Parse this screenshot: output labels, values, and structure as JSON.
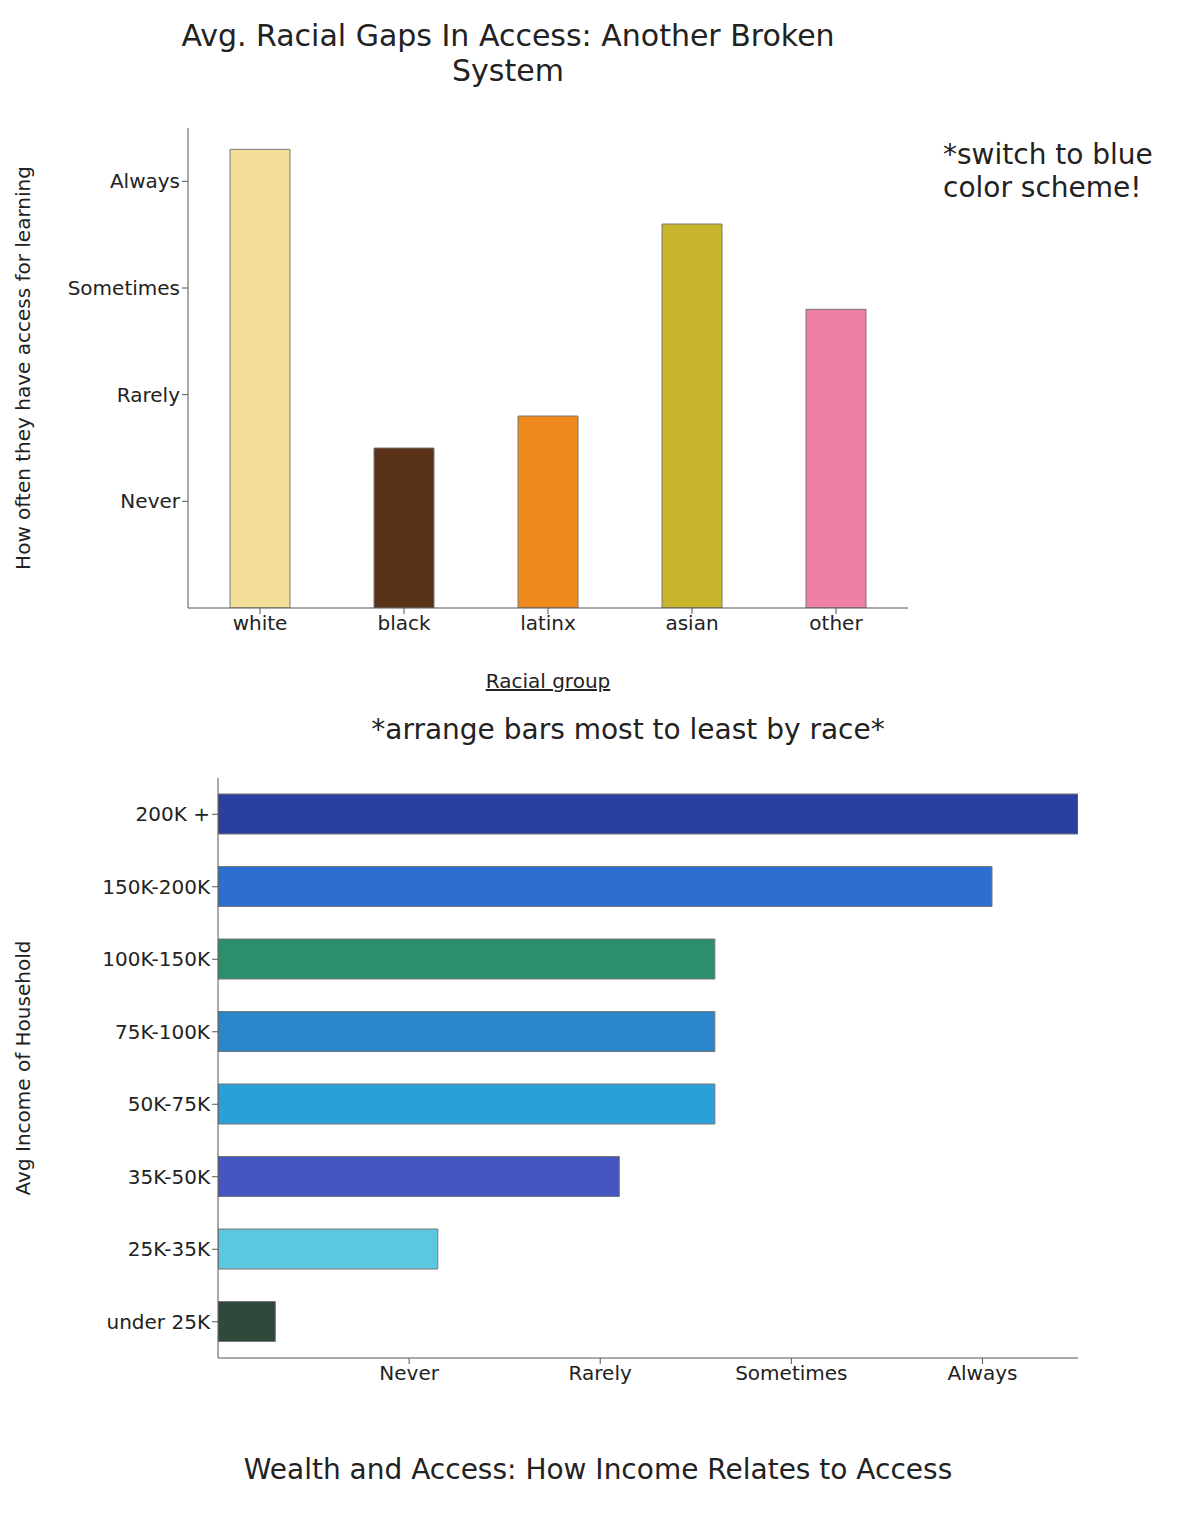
{
  "chart_data": [
    {
      "type": "bar",
      "title": "Avg. Racial Gaps In Access: Another Broken System",
      "xlabel": "Racial group",
      "ylabel": "How often they have access for learning",
      "annotations": [
        "*switch to blue color scheme!"
      ],
      "categories": [
        "white",
        "black",
        "latinx",
        "asian",
        "other"
      ],
      "values": [
        4.3,
        1.5,
        1.8,
        3.6,
        2.8
      ],
      "colors": [
        "#f3df9a",
        "#5a3218",
        "#f08a1c",
        "#c9b52c",
        "#f07fa8"
      ],
      "ylim": [
        0,
        4.5
      ],
      "yticks": [
        {
          "value": 1,
          "label": "Never"
        },
        {
          "value": 2,
          "label": "Rarely"
        },
        {
          "value": 3,
          "label": "Sometimes"
        },
        {
          "value": 4,
          "label": "Always"
        }
      ],
      "grid": false
    },
    {
      "type": "bar",
      "orientation": "horizontal",
      "title": "Wealth and Access: How Income Relates to Access",
      "ylabel": "Avg Income of Household",
      "annotations": [
        "*arrange bars most to least by race*"
      ],
      "categories": [
        "200K +",
        "150K-200K",
        "100K-150K",
        "75K-100K",
        "50K-75K",
        "35K-50K",
        "25K-35K",
        "under 25K"
      ],
      "values": [
        4.5,
        4.05,
        2.6,
        2.6,
        2.6,
        2.1,
        1.15,
        0.3
      ],
      "colors": [
        "#2b3f9e",
        "#2d6fd0",
        "#2a8f6a",
        "#2a86c8",
        "#2aa0d8",
        "#4656c0",
        "#5cc8e0",
        "#2f4a3a"
      ],
      "xlim": [
        0,
        4.5
      ],
      "xticks": [
        {
          "value": 1,
          "label": "Never"
        },
        {
          "value": 2,
          "label": "Rarely"
        },
        {
          "value": 3,
          "label": "Sometimes"
        },
        {
          "value": 4,
          "label": "Always"
        }
      ],
      "grid": false
    }
  ]
}
